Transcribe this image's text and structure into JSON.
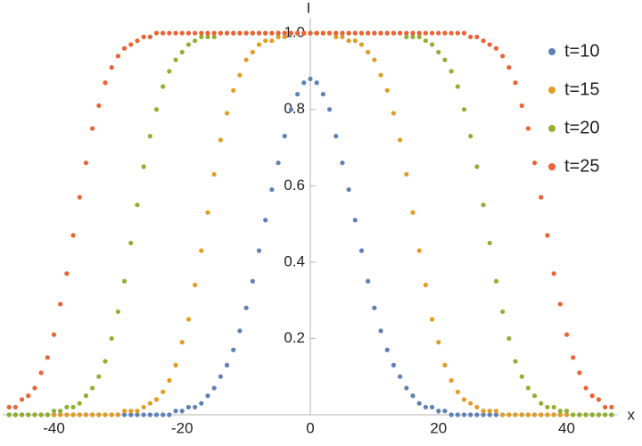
{
  "chart_data": {
    "type": "scatter",
    "x_label": "x",
    "y_label": "I",
    "x": [
      -47,
      -46,
      -45,
      -44,
      -43,
      -42,
      -41,
      -40,
      -39,
      -38,
      -37,
      -36,
      -35,
      -34,
      -33,
      -32,
      -31,
      -30,
      -29,
      -28,
      -27,
      -26,
      -25,
      -24,
      -23,
      -22,
      -21,
      -20,
      -19,
      -18,
      -17,
      -16,
      -15,
      -14,
      -13,
      -12,
      -11,
      -10,
      -9,
      -8,
      -7,
      -6,
      -5,
      -4,
      -3,
      -2,
      -1,
      0,
      1,
      2,
      3,
      4,
      5,
      6,
      7,
      8,
      9,
      10,
      11,
      12,
      13,
      14,
      15,
      16,
      17,
      18,
      19,
      20,
      21,
      22,
      23,
      24,
      25,
      26,
      27,
      28,
      29,
      30,
      31,
      32,
      33,
      34,
      35,
      36,
      37,
      38,
      39,
      40,
      41,
      42,
      43,
      44,
      45,
      46,
      47
    ],
    "series": [
      {
        "name": "t=10",
        "color": "#5e81b5",
        "values": [
          0,
          0,
          0,
          0,
          0,
          0,
          0,
          0,
          0,
          0,
          0,
          0,
          0,
          0,
          0,
          0,
          0,
          0,
          0,
          0,
          0,
          0,
          0,
          0,
          0,
          0,
          0.01,
          0.01,
          0.02,
          0.02,
          0.03,
          0.05,
          0.07,
          0.1,
          0.13,
          0.17,
          0.22,
          0.28,
          0.35,
          0.43,
          0.51,
          0.59,
          0.66,
          0.73,
          0.8,
          0.84,
          0.87,
          0.88,
          0.87,
          0.84,
          0.8,
          0.73,
          0.66,
          0.59,
          0.51,
          0.43,
          0.35,
          0.28,
          0.22,
          0.17,
          0.13,
          0.1,
          0.07,
          0.05,
          0.03,
          0.02,
          0.02,
          0.01,
          0.01,
          0,
          0,
          0,
          0,
          0,
          0,
          0,
          0,
          0,
          0,
          0,
          0,
          0,
          0,
          0,
          0,
          0,
          0,
          0,
          0,
          0,
          0,
          0,
          0,
          0,
          0
        ]
      },
      {
        "name": "t=15",
        "color": "#e19c24",
        "values": [
          0,
          0,
          0,
          0,
          0,
          0,
          0,
          0,
          0,
          0,
          0,
          0,
          0,
          0,
          0,
          0,
          0,
          0,
          0.01,
          0.01,
          0.01,
          0.02,
          0.03,
          0.04,
          0.06,
          0.09,
          0.13,
          0.19,
          0.25,
          0.34,
          0.43,
          0.53,
          0.63,
          0.72,
          0.79,
          0.85,
          0.89,
          0.93,
          0.95,
          0.97,
          0.98,
          0.98,
          0.99,
          0.99,
          1,
          1,
          1,
          1,
          1,
          1,
          1,
          0.99,
          0.99,
          0.98,
          0.98,
          0.97,
          0.95,
          0.93,
          0.89,
          0.85,
          0.79,
          0.72,
          0.63,
          0.53,
          0.43,
          0.34,
          0.25,
          0.19,
          0.13,
          0.09,
          0.06,
          0.04,
          0.03,
          0.02,
          0.01,
          0.01,
          0.01,
          0,
          0,
          0,
          0,
          0,
          0,
          0,
          0,
          0,
          0,
          0,
          0,
          0,
          0,
          0,
          0,
          0,
          0
        ]
      },
      {
        "name": "t=20",
        "color": "#8fb032",
        "values": [
          0,
          0,
          0,
          0,
          0,
          0,
          0,
          0.01,
          0.01,
          0.02,
          0.02,
          0.03,
          0.05,
          0.07,
          0.1,
          0.14,
          0.2,
          0.27,
          0.35,
          0.45,
          0.55,
          0.65,
          0.73,
          0.8,
          0.86,
          0.9,
          0.93,
          0.95,
          0.97,
          0.98,
          0.99,
          0.99,
          0.99,
          1,
          1,
          1,
          1,
          1,
          1,
          1,
          1,
          1,
          1,
          1,
          1,
          1,
          1,
          1,
          1,
          1,
          1,
          1,
          1,
          1,
          1,
          1,
          1,
          1,
          1,
          1,
          1,
          1,
          0.99,
          0.99,
          0.99,
          0.98,
          0.97,
          0.95,
          0.93,
          0.9,
          0.86,
          0.8,
          0.73,
          0.65,
          0.55,
          0.45,
          0.35,
          0.27,
          0.2,
          0.14,
          0.1,
          0.07,
          0.05,
          0.03,
          0.02,
          0.02,
          0.01,
          0.01,
          0,
          0,
          0,
          0,
          0,
          0,
          0
        ]
      },
      {
        "name": "t=25",
        "color": "#eb6235",
        "values": [
          0.02,
          0.02,
          0.04,
          0.05,
          0.07,
          0.11,
          0.15,
          0.21,
          0.29,
          0.37,
          0.47,
          0.57,
          0.66,
          0.75,
          0.81,
          0.87,
          0.91,
          0.94,
          0.96,
          0.97,
          0.98,
          0.99,
          0.99,
          1,
          1,
          1,
          1,
          1,
          1,
          1,
          1,
          1,
          1,
          1,
          1,
          1,
          1,
          1,
          1,
          1,
          1,
          1,
          1,
          1,
          1,
          1,
          1,
          1,
          1,
          1,
          1,
          1,
          1,
          1,
          1,
          1,
          1,
          1,
          1,
          1,
          1,
          1,
          1,
          1,
          1,
          1,
          1,
          1,
          1,
          1,
          1,
          1,
          0.99,
          0.99,
          0.98,
          0.97,
          0.96,
          0.94,
          0.91,
          0.87,
          0.81,
          0.75,
          0.66,
          0.57,
          0.47,
          0.37,
          0.29,
          0.21,
          0.15,
          0.11,
          0.07,
          0.05,
          0.04,
          0.02,
          0.02
        ]
      }
    ],
    "xlim": [
      -48,
      48
    ],
    "ylim": [
      0,
      1.04
    ],
    "xticks": [
      -40,
      -20,
      0,
      20,
      40
    ],
    "yticks": [
      0.2,
      0.4,
      0.6,
      0.8,
      {
        "value": 1,
        "label": "1.0"
      }
    ],
    "legend": "right"
  }
}
